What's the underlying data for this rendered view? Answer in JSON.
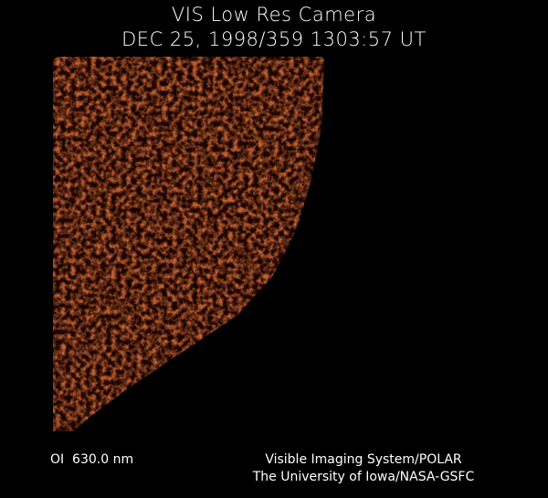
{
  "header": {
    "title": "VIS Low Res Camera",
    "timestamp": "DEC 25, 1998/359 1303:57 UT"
  },
  "footer": {
    "filter": "OI  630.0 nm",
    "credit_line_1": "Visible Imaging System/POLAR",
    "credit_line_2": "The University of Iowa/NASA-GSFC"
  }
}
